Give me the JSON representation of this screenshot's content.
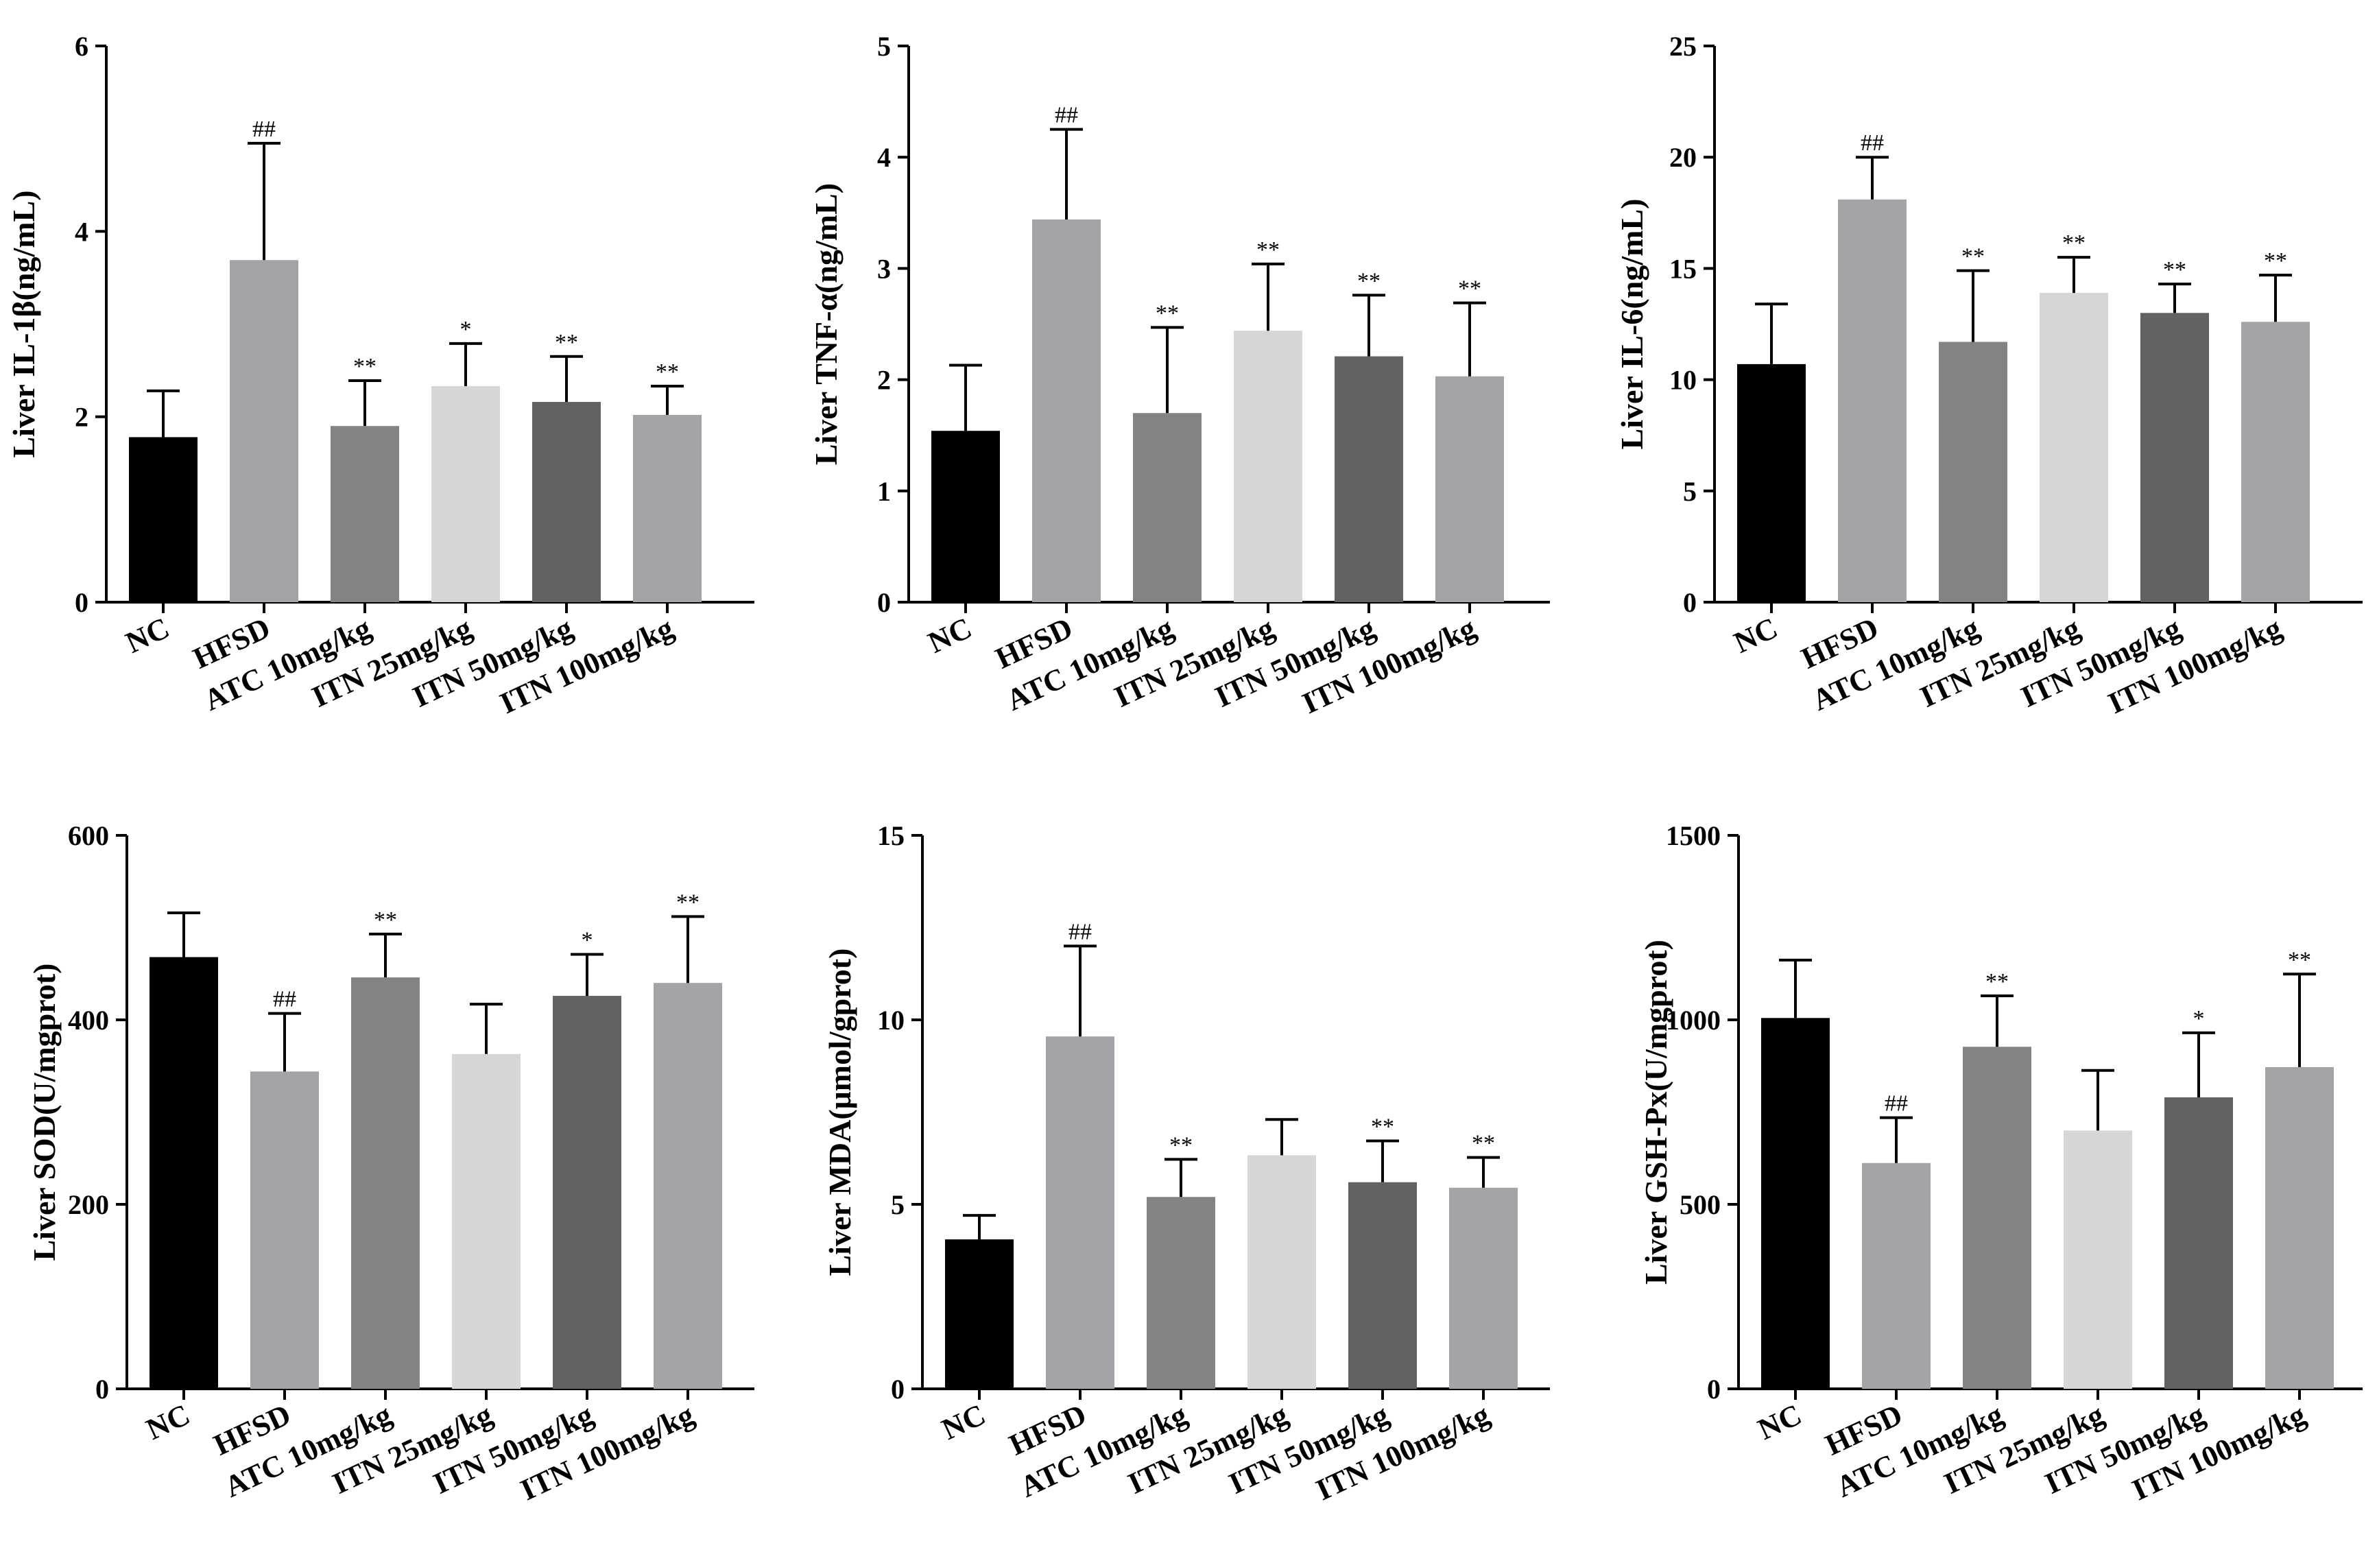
{
  "chart_data": [
    {
      "type": "bar",
      "id": "il1b",
      "ylabel": "Liver IL-1β(ng/mL)",
      "categories": [
        "NC",
        "HFSD",
        "ATC 10mg/kg",
        "ITN 25mg/kg",
        "ITN 50mg/kg",
        "ITN 100mg/kg"
      ],
      "values": [
        1.78,
        3.69,
        1.9,
        2.33,
        2.16,
        2.02
      ],
      "errors": [
        0.5,
        1.26,
        0.49,
        0.46,
        0.49,
        0.31
      ],
      "significance": [
        "",
        "##",
        "**",
        "*",
        "**",
        "**"
      ],
      "ylim": [
        0,
        6
      ],
      "yticks": [
        0,
        2,
        4,
        6
      ]
    },
    {
      "type": "bar",
      "id": "tnfa",
      "ylabel": "Liver TNF-α(ng/mL)",
      "categories": [
        "NC",
        "HFSD",
        "ATC 10mg/kg",
        "ITN 25mg/kg",
        "ITN 50mg/kg",
        "ITN 100mg/kg"
      ],
      "values": [
        1.54,
        3.44,
        1.7,
        2.44,
        2.21,
        2.03
      ],
      "errors": [
        0.59,
        0.81,
        0.77,
        0.6,
        0.55,
        0.66
      ],
      "significance": [
        "",
        "##",
        "**",
        "**",
        "**",
        "**"
      ],
      "ylim": [
        0,
        5
      ],
      "yticks": [
        0,
        1,
        2,
        3,
        4,
        5
      ]
    },
    {
      "type": "bar",
      "id": "il6",
      "ylabel": "Liver IL-6(ng/mL)",
      "categories": [
        "NC",
        "HFSD",
        "ATC 10mg/kg",
        "ITN 25mg/kg",
        "ITN 50mg/kg",
        "ITN 100mg/kg"
      ],
      "values": [
        10.7,
        18.1,
        11.7,
        13.9,
        13.0,
        12.6
      ],
      "errors": [
        2.7,
        1.9,
        3.2,
        1.6,
        1.3,
        2.1
      ],
      "significance": [
        "",
        "##",
        "**",
        "**",
        "**",
        "**"
      ],
      "ylim": [
        0,
        25
      ],
      "yticks": [
        0,
        5,
        10,
        15,
        20,
        25
      ]
    },
    {
      "type": "bar",
      "id": "sod",
      "ylabel": "Liver SOD(U/mgprot)",
      "categories": [
        "NC",
        "HFSD",
        "ATC 10mg/kg",
        "ITN 25mg/kg",
        "ITN 50mg/kg",
        "ITN 100mg/kg"
      ],
      "values": [
        468,
        344,
        446,
        363,
        426,
        440
      ],
      "errors": [
        48,
        63,
        47,
        54,
        45,
        72
      ],
      "significance": [
        "",
        "##",
        "**",
        "",
        "*",
        "**"
      ],
      "ylim": [
        0,
        600
      ],
      "yticks": [
        0,
        200,
        400,
        600
      ]
    },
    {
      "type": "bar",
      "id": "mda",
      "ylabel": "Liver MDA(μmol/gprot)",
      "categories": [
        "NC",
        "HFSD",
        "ATC 10mg/kg",
        "ITN 25mg/kg",
        "ITN 50mg/kg",
        "ITN 100mg/kg"
      ],
      "values": [
        4.05,
        9.55,
        5.2,
        6.33,
        5.6,
        5.45
      ],
      "errors": [
        0.65,
        2.45,
        1.02,
        0.97,
        1.12,
        0.82
      ],
      "significance": [
        "",
        "##",
        "**",
        "",
        "**",
        "**"
      ],
      "ylim": [
        0,
        15
      ],
      "yticks": [
        0,
        5,
        10,
        15
      ]
    },
    {
      "type": "bar",
      "id": "gshpx",
      "ylabel": "Liver GSH-Px(U/mgprot)",
      "categories": [
        "NC",
        "HFSD",
        "ATC 10mg/kg",
        "ITN 25mg/kg",
        "ITN 50mg/kg",
        "ITN 100mg/kg"
      ],
      "values": [
        1005,
        612,
        927,
        700,
        790,
        872
      ],
      "errors": [
        157,
        123,
        138,
        163,
        175,
        252
      ],
      "significance": [
        "",
        "##",
        "**",
        "",
        "*",
        "**"
      ],
      "ylim": [
        0,
        1500
      ],
      "yticks": [
        0,
        500,
        1000,
        1500
      ]
    }
  ],
  "colors": {
    "bars": [
      "#000000",
      "#a3a3a8",
      "#838383",
      "#d6d6d6",
      "#626262",
      "#a3a3a8"
    ],
    "axis": "#000000"
  }
}
